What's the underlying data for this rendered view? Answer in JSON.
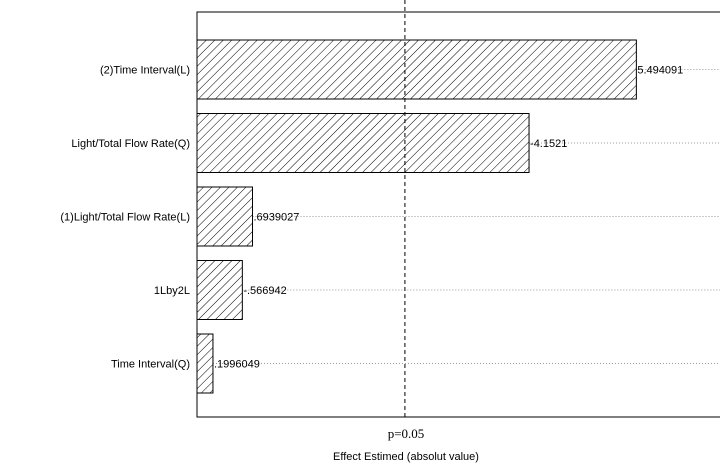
{
  "chart_data": {
    "type": "bar",
    "orientation": "horizontal",
    "categories": [
      "(2)Time Interval(L)",
      "Light/Total Flow Rate(Q)",
      "(1)Light/Total Flow Rate(L)",
      "1Lby2L",
      "Time Interval(Q)"
    ],
    "values": [
      5.494091,
      4.1521,
      0.6939027,
      0.566942,
      0.1996049
    ],
    "data_labels": [
      "5.494091",
      "-4.1521",
      ".6939027",
      "-.566942",
      ".1996049"
    ],
    "xlim": [
      0,
      6.54
    ],
    "xlabel": "Effect Estimed (absolut value)",
    "reference_line": {
      "value": 2.6,
      "label": "p=0.05"
    },
    "bar_fill": "hatched",
    "grid": "dotted horizontal guides at data labels"
  }
}
